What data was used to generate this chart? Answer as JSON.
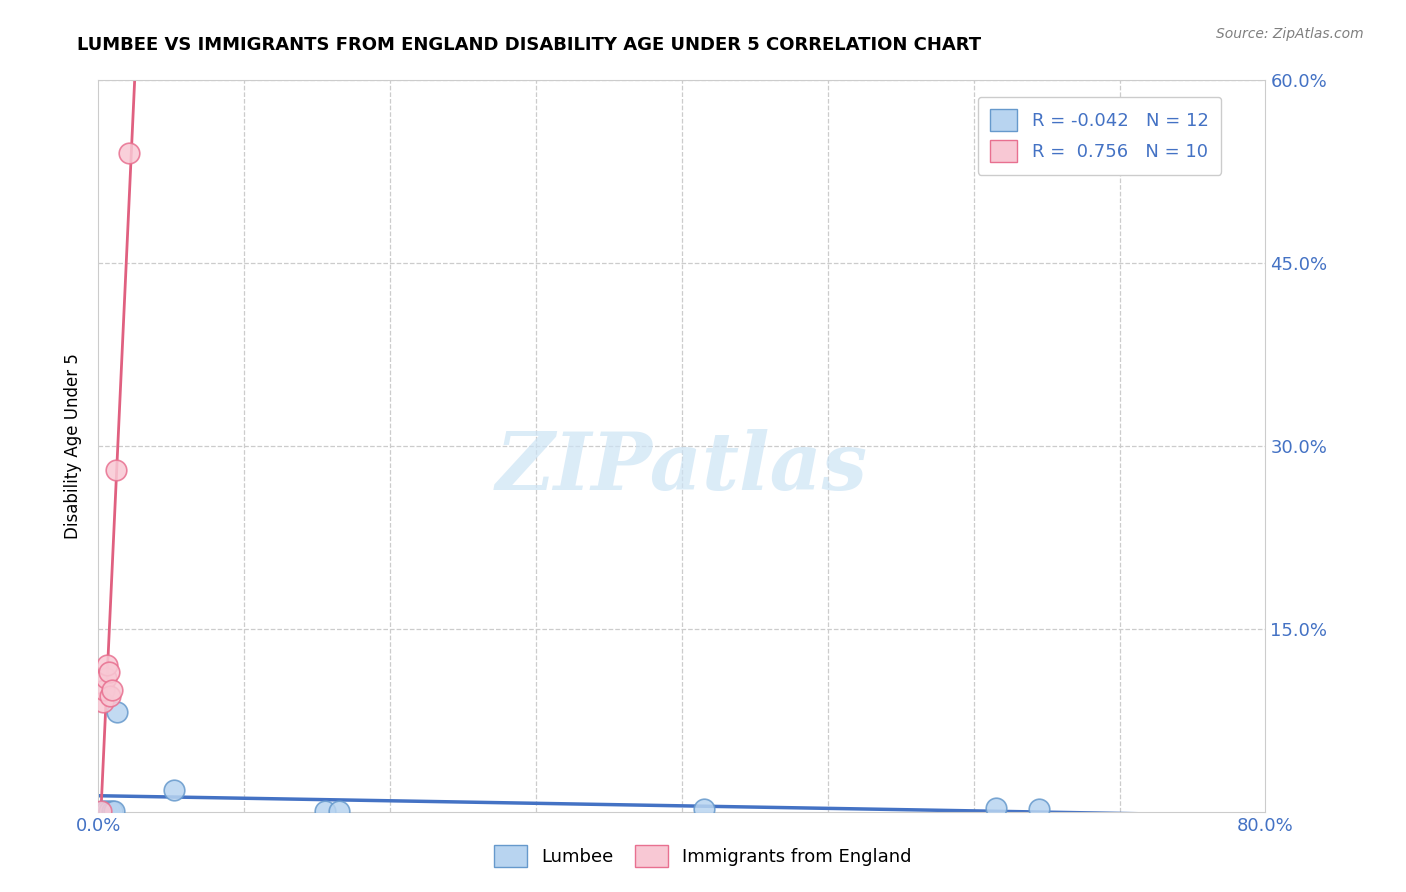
{
  "title": "LUMBEE VS IMMIGRANTS FROM ENGLAND DISABILITY AGE UNDER 5 CORRELATION CHART",
  "source": "Source: ZipAtlas.com",
  "ylabel": "Disability Age Under 5",
  "xlim": [
    0.0,
    0.8
  ],
  "ylim": [
    0.0,
    0.6
  ],
  "xticks": [
    0.0,
    0.1,
    0.2,
    0.3,
    0.4,
    0.5,
    0.6,
    0.7,
    0.8
  ],
  "yticks": [
    0.0,
    0.15,
    0.3,
    0.45,
    0.6
  ],
  "grid_color": "#cccccc",
  "background_color": "#ffffff",
  "lumbee": {
    "label": "Lumbee",
    "color": "#b8d4f0",
    "edge_color": "#6699cc",
    "R": -0.042,
    "N": 12,
    "x": [
      0.003,
      0.005,
      0.007,
      0.009,
      0.011,
      0.013,
      0.052,
      0.155,
      0.165,
      0.415,
      0.615,
      0.645
    ],
    "y": [
      0.001,
      0.001,
      0.001,
      0.001,
      0.001,
      0.082,
      0.018,
      0.001,
      0.001,
      0.002,
      0.003,
      0.002
    ]
  },
  "england": {
    "label": "Immigrants from England",
    "color": "#f8c8d4",
    "edge_color": "#e87090",
    "trend_color": "#e06080",
    "R": 0.756,
    "N": 10,
    "x": [
      0.002,
      0.003,
      0.004,
      0.005,
      0.006,
      0.007,
      0.008,
      0.009,
      0.012,
      0.021
    ],
    "y": [
      0.001,
      0.09,
      0.1,
      0.11,
      0.12,
      0.115,
      0.095,
      0.1,
      0.28,
      0.54
    ]
  },
  "lumbee_trend_color": "#4472c4",
  "legend_text_color": "#4472c4",
  "watermark_color": "#cce4f5",
  "title_fontsize": 13,
  "tick_fontsize": 13,
  "legend_fontsize": 13,
  "ylabel_fontsize": 12
}
